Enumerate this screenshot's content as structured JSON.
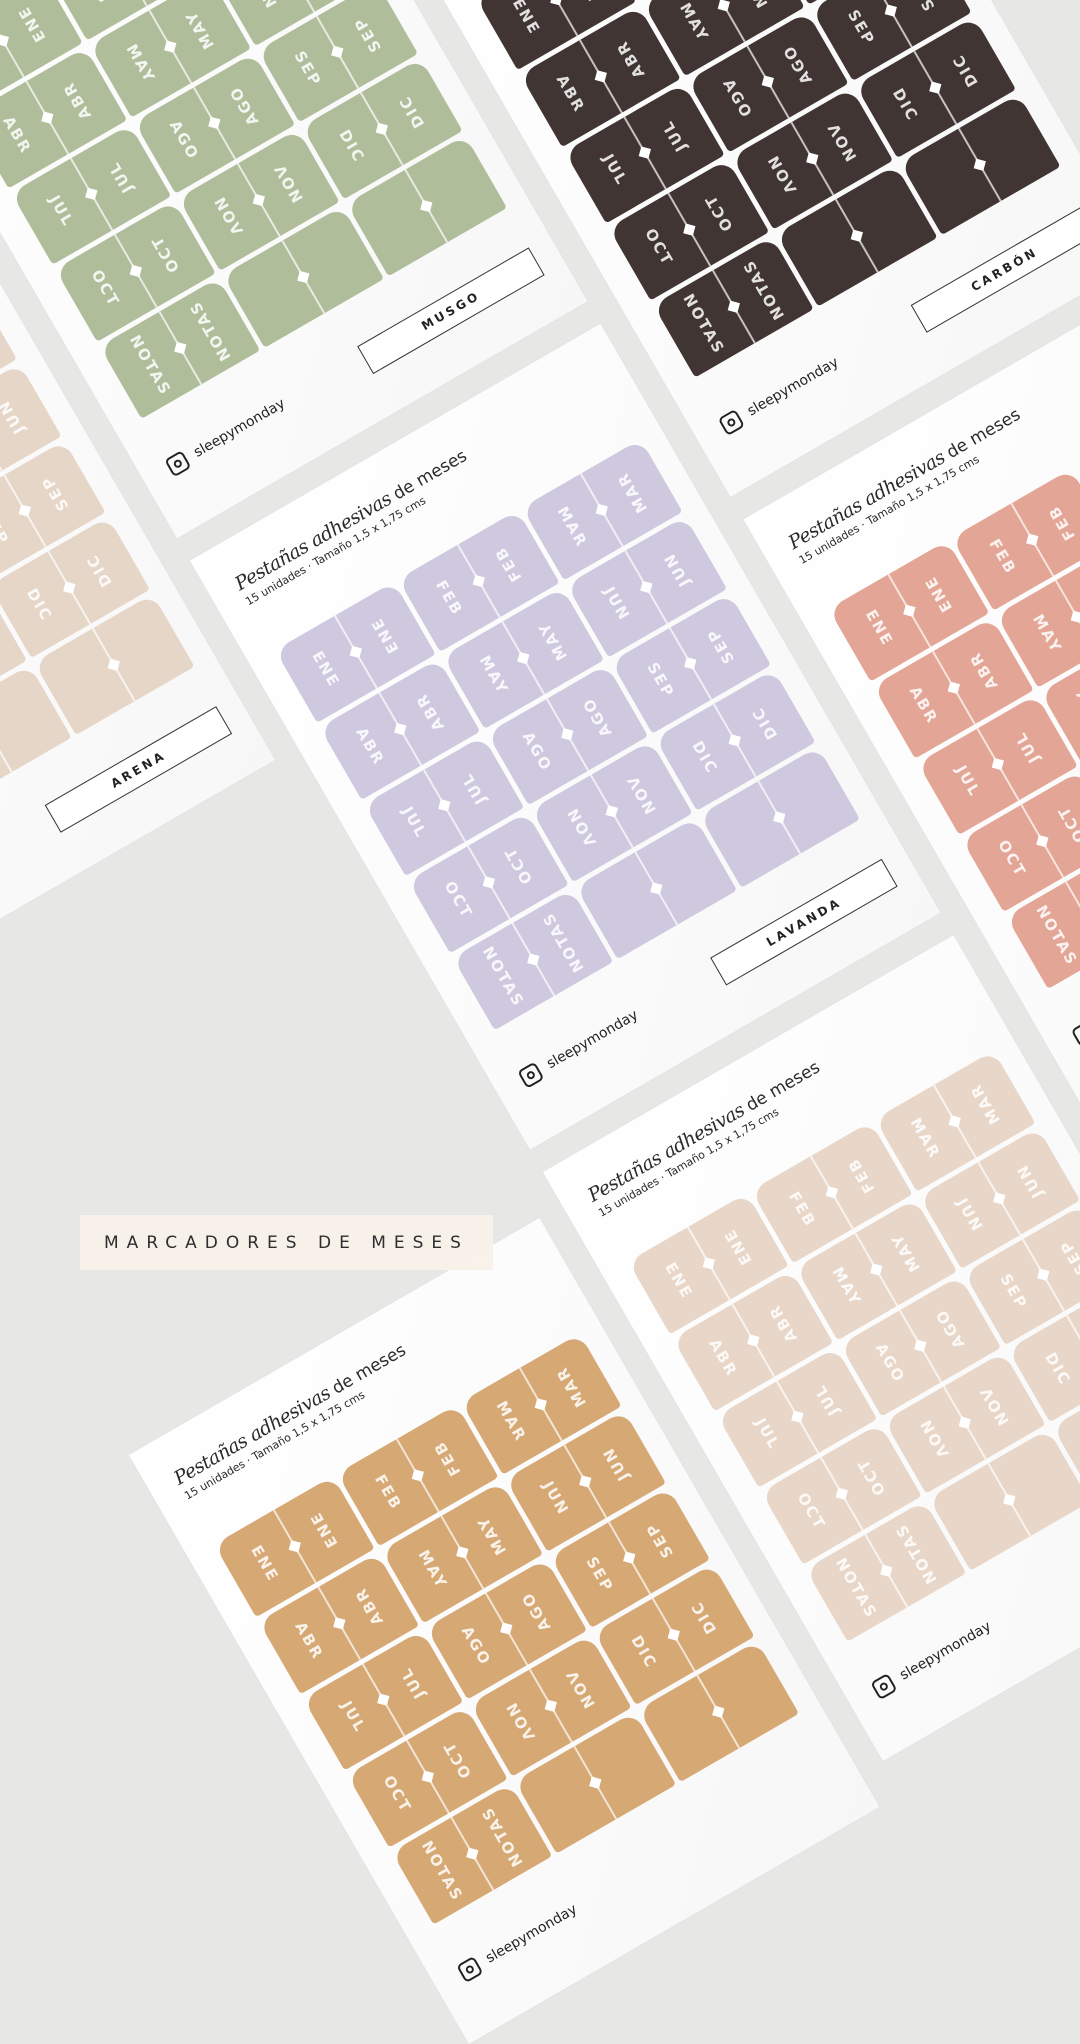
{
  "header": {
    "title_italic": "Pestañas adhesivas",
    "title_rest": "de meses",
    "subtitle": "15 unidades  ·  Tamaño 1,5 x 1,75 cms"
  },
  "brand": {
    "handle": "sleepymonday",
    "icon": "instagram-icon"
  },
  "tabs": [
    "ENE",
    "FEB",
    "MAR",
    "ABR",
    "MAY",
    "JUN",
    "JUL",
    "AGO",
    "SEP",
    "OCT",
    "NOV",
    "DIC",
    "NOTAS",
    "",
    ""
  ],
  "cards": [
    {
      "name": "MUSGO",
      "color": "#afbd9a",
      "text_color": "#ffffff"
    },
    {
      "name": "LAVANDA",
      "color": "#cfc9e0",
      "text_color": "#ffffff"
    },
    {
      "name": "",
      "color": "#e8d7c9",
      "text_color": "#ffffff"
    },
    {
      "name": "CARBÓN",
      "color": "#403532",
      "text_color": "#ffffff"
    },
    {
      "name": "",
      "color": "#e3a595",
      "text_color": "#ffffff"
    },
    {
      "name": "ARENA",
      "color": "#e6d6c8",
      "text_color": "#ffffff"
    },
    {
      "name": "",
      "color": "#d6a874",
      "text_color": "#ffffff"
    }
  ],
  "banner": "MARCADORES DE MESES"
}
